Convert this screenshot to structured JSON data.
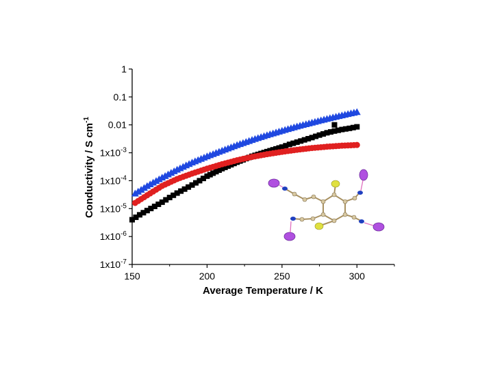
{
  "chart_data": {
    "type": "scatter",
    "xlabel": "Average Temperature / K",
    "ylabel": "Conductivity / S cm",
    "ylabel_superscript": "-1",
    "xlim": [
      150,
      325
    ],
    "ylim_log10": [
      -7,
      0
    ],
    "log_y": true,
    "x_ticks": [
      150,
      200,
      250,
      300
    ],
    "y_ticks": [
      {
        "base": "1",
        "exp": ""
      },
      {
        "base": "0.1",
        "exp": ""
      },
      {
        "base": "0.01",
        "exp": ""
      },
      {
        "base": "1x10",
        "exp": "-3"
      },
      {
        "base": "1x10",
        "exp": "-4"
      },
      {
        "base": "1x10",
        "exp": "-5"
      },
      {
        "base": "1x10",
        "exp": "-6"
      },
      {
        "base": "1x10",
        "exp": "-7"
      }
    ],
    "series": [
      {
        "marker": "triangle",
        "color": "#1f48e0",
        "x": [
          152,
          160,
          170,
          180,
          190,
          200,
          210,
          220,
          230,
          240,
          250,
          260,
          270,
          280,
          290,
          300
        ],
        "y": [
          3.5e-05,
          6.5e-05,
          0.00013,
          0.00025,
          0.00045,
          0.00075,
          0.0012,
          0.0019,
          0.0029,
          0.0043,
          0.0062,
          0.0088,
          0.0121,
          0.0165,
          0.022,
          0.029
        ]
      },
      {
        "marker": "square",
        "color": "#000000",
        "x": [
          150,
          155,
          160,
          165,
          170,
          175,
          180,
          185,
          190,
          195,
          200,
          210,
          220,
          230,
          240,
          250,
          255,
          260,
          265,
          270,
          275,
          280,
          285,
          290,
          295,
          300
        ],
        "y": [
          4e-06,
          6e-06,
          8.5e-06,
          1.2e-05,
          1.7e-05,
          2.5e-05,
          3.6e-05,
          5e-05,
          7e-05,
          0.0001,
          0.000145,
          0.00027,
          0.00046,
          0.00075,
          0.0011,
          0.0016,
          0.002,
          0.0024,
          0.0029,
          0.0035,
          0.0043,
          0.0052,
          0.006,
          0.0068,
          0.0075,
          0.0085
        ],
        "outlier": {
          "x": 285,
          "y": 0.01
        }
      },
      {
        "marker": "circle",
        "color": "#e02020",
        "x": [
          152,
          160,
          170,
          180,
          190,
          200,
          210,
          220,
          230,
          240,
          250,
          260,
          270,
          280,
          290,
          300
        ],
        "y": [
          1.6e-05,
          3e-05,
          6.5e-05,
          0.000115,
          0.00018,
          0.00027,
          0.00039,
          0.00054,
          0.00071,
          0.00089,
          0.00108,
          0.00128,
          0.00148,
          0.00165,
          0.0018,
          0.0019
        ]
      }
    ],
    "inset": "molecular-structure"
  }
}
